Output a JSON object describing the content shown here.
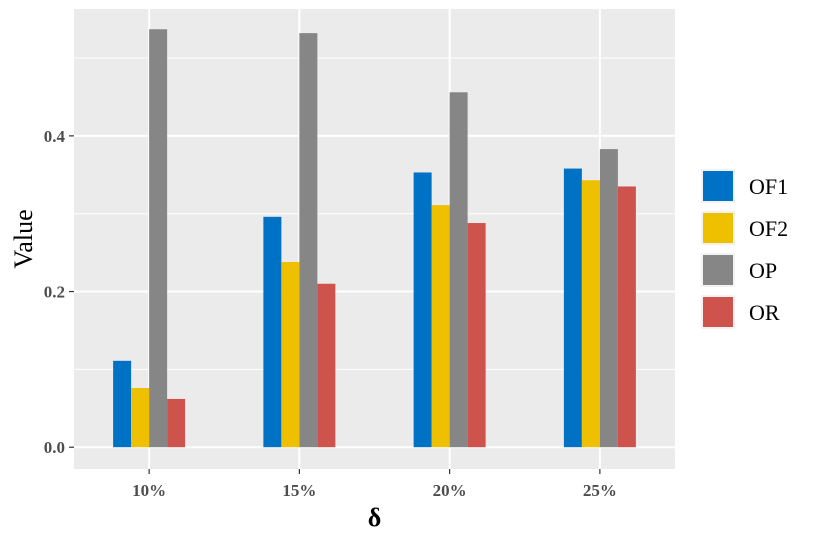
{
  "chart_data": {
    "type": "bar",
    "xlabel": "δ",
    "ylabel": "Value",
    "categories": [
      "10%",
      "15%",
      "20%",
      "25%"
    ],
    "series": [
      {
        "name": "OF1",
        "color": "#0072C6",
        "values": [
          0.111,
          0.296,
          0.353,
          0.358
        ]
      },
      {
        "name": "OF2",
        "color": "#EFC000",
        "values": [
          0.076,
          0.238,
          0.311,
          0.343
        ]
      },
      {
        "name": "OP",
        "color": "#868686",
        "values": [
          0.537,
          0.532,
          0.456,
          0.383
        ]
      },
      {
        "name": "OR",
        "color": "#CD534C",
        "values": [
          0.062,
          0.21,
          0.288,
          0.335
        ]
      }
    ],
    "yticks": [
      0.0,
      0.2,
      0.4
    ],
    "ytick_labels": [
      "0.0",
      "0.2",
      "0.4"
    ],
    "ylim": [
      -0.028,
      0.563
    ],
    "grid": true,
    "panel_background": "#EBEBEB",
    "legend_position": "right"
  }
}
